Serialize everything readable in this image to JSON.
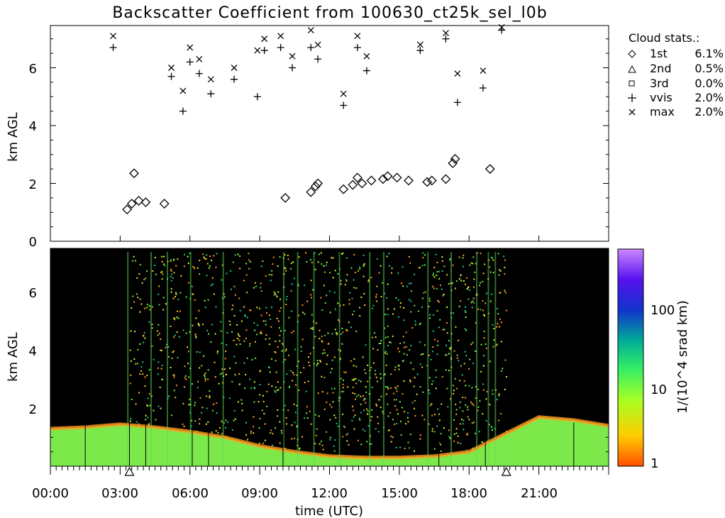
{
  "title": "Backscatter Coefficient from 100630_ct25k_sel_l0b",
  "top_panel": {
    "ylabel": "km AGL",
    "yticks": [
      "0",
      "2",
      "4",
      "6"
    ],
    "legend_title": "Cloud stats.:",
    "legend": [
      {
        "label": "1st",
        "pct": "6.1%",
        "symbol": "diamond-icon"
      },
      {
        "label": "2nd",
        "pct": "0.5%",
        "symbol": "triangle-icon"
      },
      {
        "label": "3rd",
        "pct": "0.0%",
        "symbol": "square-icon"
      },
      {
        "label": "vvis",
        "pct": "2.0%",
        "symbol": "plus-icon"
      },
      {
        "label": "max",
        "pct": "2.0%",
        "symbol": "cross-icon"
      }
    ]
  },
  "bottom_panel": {
    "ylabel": "km AGL",
    "yticks": [
      "2",
      "4",
      "6"
    ],
    "xlabel": "time (UTC)",
    "xticks": [
      "00:00",
      "03:00",
      "06:00",
      "09:00",
      "12:00",
      "15:00",
      "18:00",
      "21:00"
    ],
    "colorbar_label": "1/(10^4 srad km)",
    "colorbar_ticks": [
      "1",
      "10",
      "100"
    ],
    "colorbar_colors": [
      "#ff5000",
      "#ffcc00",
      "#aaff22",
      "#33ee66",
      "#00aa99",
      "#1133cc",
      "#5511ee",
      "#cc88ff"
    ]
  },
  "chart_data": [
    {
      "type": "scatter",
      "title": "Backscatter Coefficient from 100630_ct25k_sel_l0b",
      "xlabel": "",
      "ylabel": "km AGL",
      "xlim": [
        0,
        24
      ],
      "ylim": [
        0,
        7.4
      ],
      "grid": false,
      "legend_position": "right",
      "series": [
        {
          "name": "1st",
          "symbol": "diamond",
          "x": [
            3.3,
            3.5,
            3.8,
            3.6,
            4.1,
            4.9,
            10.1,
            11.2,
            11.4,
            11.5,
            12.6,
            13.0,
            13.2,
            13.4,
            13.8,
            14.3,
            14.5,
            14.9,
            15.4,
            16.2,
            16.4,
            17.0,
            17.3,
            17.4,
            18.9
          ],
          "y": [
            1.1,
            1.3,
            1.4,
            2.35,
            1.35,
            1.3,
            1.5,
            1.7,
            1.9,
            2.0,
            1.8,
            1.95,
            2.2,
            2.0,
            2.1,
            2.15,
            2.25,
            2.2,
            2.1,
            2.05,
            2.1,
            2.15,
            2.7,
            2.85,
            2.5
          ]
        },
        {
          "name": "2nd",
          "symbol": "triangle",
          "x": [],
          "y": []
        },
        {
          "name": "3rd",
          "symbol": "square",
          "x": [],
          "y": []
        },
        {
          "name": "vvis",
          "symbol": "plus",
          "x": [
            2.7,
            5.2,
            5.7,
            6.0,
            6.4,
            6.9,
            7.9,
            8.9,
            9.2,
            9.9,
            10.4,
            11.2,
            11.5,
            12.6,
            13.2,
            13.6,
            15.9,
            17.0,
            17.5,
            18.6,
            19.4
          ],
          "y": [
            6.7,
            5.7,
            4.5,
            6.2,
            5.8,
            5.1,
            5.6,
            5.0,
            6.6,
            6.7,
            6.0,
            6.7,
            6.3,
            4.7,
            6.7,
            5.9,
            6.6,
            7.0,
            4.8,
            5.3,
            7.3
          ]
        },
        {
          "name": "max",
          "symbol": "cross",
          "x": [
            2.7,
            5.2,
            5.7,
            6.0,
            6.4,
            6.9,
            7.9,
            8.9,
            9.2,
            9.9,
            10.4,
            11.2,
            11.5,
            12.6,
            13.2,
            13.6,
            15.9,
            17.0,
            17.5,
            18.6,
            19.4
          ],
          "y": [
            7.1,
            6.0,
            5.2,
            6.7,
            6.3,
            5.6,
            6.0,
            6.6,
            7.0,
            7.1,
            6.4,
            7.3,
            6.8,
            5.1,
            7.1,
            6.4,
            6.8,
            7.2,
            5.8,
            5.9,
            7.4
          ]
        }
      ]
    },
    {
      "type": "heatmap",
      "xlabel": "time (UTC)",
      "ylabel": "km AGL",
      "xlim": [
        0,
        24
      ],
      "ylim": [
        0,
        7.5
      ],
      "colorbar_label": "1/(10^4 srad km)",
      "colorbar_scale": "log",
      "colorbar_range": [
        1,
        500
      ],
      "boundary_layer_top_km": {
        "x": [
          0,
          1.5,
          3,
          4.5,
          6,
          7.5,
          9,
          10.5,
          12,
          13.5,
          15,
          16.5,
          18,
          19.5,
          21,
          22.5,
          24
        ],
        "y": [
          1.3,
          1.35,
          1.45,
          1.35,
          1.2,
          1.0,
          0.7,
          0.5,
          0.35,
          0.3,
          0.3,
          0.35,
          0.5,
          1.1,
          1.7,
          1.6,
          1.4
        ]
      },
      "markers_x_hours": [
        3.4,
        19.6
      ]
    }
  ]
}
